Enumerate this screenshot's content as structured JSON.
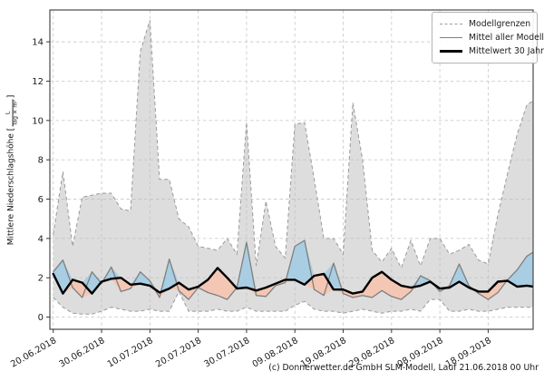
{
  "caption": "(c) Donnerwetter.de GmbH SLM-Modell, Lauf 21.06.2018 00 Uhr",
  "legend": [
    {
      "label": "Modellgrenzen",
      "style": "dashed-gray"
    },
    {
      "label": "Mittel aller Modelle",
      "style": "solid-gray"
    },
    {
      "label": "Mittelwert 30 Jahre",
      "style": "solid-black-thick"
    }
  ],
  "chart_data": {
    "type": "line",
    "title": "",
    "xlabel": "",
    "ylabel": {
      "text": "Mittlere Niederschlagshöhe ",
      "bracket_open": "[",
      "unit_num": "L",
      "unit_den": "Tag × m²",
      "bracket_close": "]"
    },
    "grid": "dashed both axes",
    "legend_position": "upper right inside",
    "x_unit": "days since 20.06.2018",
    "xlim": [
      -0.7,
      99.3
    ],
    "ylim": [
      -0.62,
      15.62
    ],
    "x_ticks": {
      "positions_days": [
        0,
        10,
        20,
        30,
        40,
        50,
        60,
        70,
        80,
        90
      ],
      "labels": [
        "20.06.2018",
        "30.06.2018",
        "10.07.2018",
        "20.07.2018",
        "30.07.2018",
        "09.08.2018",
        "19.08.2018",
        "29.08.2018",
        "08.09.2018",
        "18.09.2018"
      ]
    },
    "y_ticks": [
      0,
      2,
      4,
      6,
      8,
      10,
      12,
      14
    ],
    "x": [
      0,
      2,
      4,
      6,
      8,
      10,
      12,
      14,
      16,
      18,
      20,
      22,
      24,
      26,
      28,
      30,
      32,
      34,
      36,
      38,
      40,
      42,
      44,
      46,
      48,
      50,
      52,
      54,
      56,
      58,
      60,
      62,
      64,
      66,
      68,
      70,
      72,
      74,
      76,
      78,
      80,
      82,
      84,
      86,
      88,
      90,
      92,
      94,
      96,
      98,
      99.3
    ],
    "series": [
      {
        "name": "Modellgrenze oben (max)",
        "legend": "Modellgrenzen",
        "line": "dashed",
        "color": "#9a9a9a",
        "values": [
          4.2,
          7.4,
          3.6,
          6.1,
          6.2,
          6.3,
          6.3,
          5.5,
          5.4,
          13.5,
          15.1,
          7.0,
          7.0,
          5.0,
          4.6,
          3.6,
          3.5,
          3.4,
          4.0,
          3.2,
          9.9,
          2.6,
          5.9,
          3.6,
          3.0,
          9.8,
          9.9,
          7.0,
          4.0,
          4.0,
          3.2,
          10.9,
          8.0,
          3.4,
          2.8,
          3.5,
          2.5,
          3.9,
          2.6,
          4.0,
          4.0,
          3.2,
          3.4,
          3.7,
          2.9,
          2.7,
          5.2,
          7.3,
          9.3,
          10.8,
          11.0
        ]
      },
      {
        "name": "Modellgrenze unten (min)",
        "legend": "Modellgrenzen",
        "line": "dashed",
        "color": "#9a9a9a",
        "values": [
          1.0,
          0.5,
          0.2,
          0.15,
          0.15,
          0.3,
          0.5,
          0.4,
          0.3,
          0.3,
          0.4,
          0.3,
          0.3,
          1.3,
          0.3,
          0.3,
          0.3,
          0.4,
          0.3,
          0.3,
          0.5,
          0.3,
          0.3,
          0.3,
          0.3,
          0.6,
          0.8,
          0.4,
          0.3,
          0.3,
          0.2,
          0.3,
          0.4,
          0.3,
          0.2,
          0.3,
          0.3,
          0.4,
          0.3,
          0.9,
          0.9,
          0.3,
          0.3,
          0.4,
          0.3,
          0.3,
          0.4,
          0.5,
          0.5,
          0.5,
          0.5
        ]
      },
      {
        "name": "Mittel aller Modelle",
        "legend": "Mittel aller Modelle",
        "line": "solid",
        "color": "#7f7f7f",
        "values": [
          2.3,
          2.9,
          1.5,
          1.0,
          2.3,
          1.7,
          2.55,
          1.3,
          1.45,
          2.3,
          1.85,
          1.0,
          2.95,
          1.35,
          0.9,
          1.5,
          1.25,
          1.1,
          0.9,
          1.5,
          3.8,
          1.1,
          1.05,
          1.6,
          1.75,
          3.6,
          3.9,
          1.4,
          1.1,
          2.75,
          1.2,
          1.0,
          1.1,
          1.0,
          1.35,
          1.05,
          0.9,
          1.3,
          2.1,
          1.85,
          1.3,
          1.6,
          2.7,
          1.6,
          1.2,
          0.9,
          1.25,
          1.9,
          2.4,
          3.1,
          3.3
        ]
      },
      {
        "name": "Mittelwert 30 Jahre",
        "legend": "Mittelwert 30 Jahre",
        "line": "solid-thick",
        "color": "#000000",
        "values": [
          2.2,
          1.2,
          1.9,
          1.75,
          1.2,
          1.8,
          1.95,
          2.0,
          1.65,
          1.7,
          1.6,
          1.25,
          1.45,
          1.75,
          1.4,
          1.55,
          1.9,
          2.5,
          2.0,
          1.45,
          1.5,
          1.35,
          1.5,
          1.7,
          1.9,
          1.9,
          1.65,
          2.1,
          2.2,
          1.4,
          1.4,
          1.2,
          1.3,
          2.0,
          2.3,
          1.9,
          1.6,
          1.5,
          1.6,
          1.8,
          1.45,
          1.5,
          1.8,
          1.5,
          1.3,
          1.3,
          1.8,
          1.85,
          1.55,
          1.6,
          1.55
        ]
      }
    ],
    "fills": [
      {
        "name": "Modellgrenzen-Band",
        "between": [
          "Modellgrenze oben (max)",
          "Modellgrenze unten (min)"
        ],
        "color": "#bbbbbb",
        "opacity": 0.5
      },
      {
        "name": "Modellmittel über 30J-Mittel",
        "between": [
          "Mittel aller Modelle",
          "Mittelwert 30 Jahre"
        ],
        "where": "above",
        "color": "#a9cee3"
      },
      {
        "name": "Modellmittel unter 30J-Mittel",
        "between": [
          "Mittel aller Modelle",
          "Mittelwert 30 Jahre"
        ],
        "where": "below",
        "color": "#f4c7b5"
      }
    ],
    "colors": {
      "band_fill": "#dcdcdc",
      "band_border": "#9a9a9a",
      "model_mean_line": "#7f7f7f",
      "mean30_line": "#000000",
      "grid": "#cdcdcd",
      "spine": "#3a3a3a",
      "blue_fill": "#a9cee3",
      "pink_fill": "#f4c7b5"
    }
  }
}
